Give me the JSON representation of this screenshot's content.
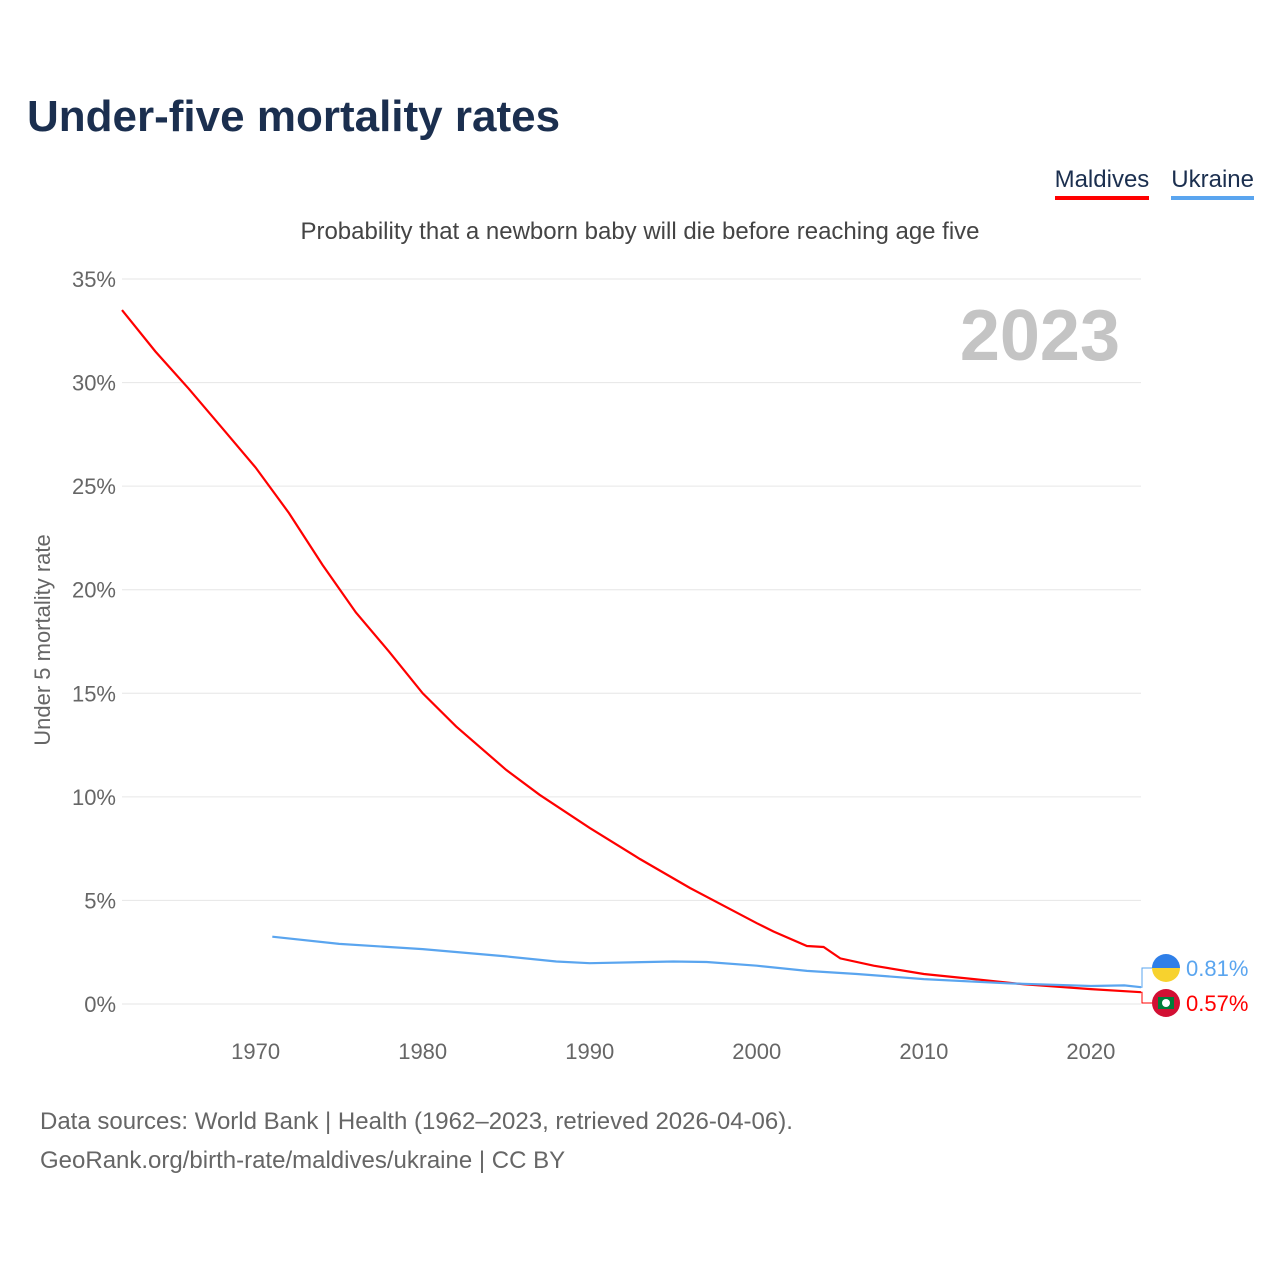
{
  "title": "Under-five mortality rates",
  "subtitle": "Probability that a newborn baby will die before reaching age five",
  "year_label": "2023",
  "source_line1": "Data sources: World Bank | Health (1962–2023, retrieved 2026-04-06).",
  "source_line2": "GeoRank.org/birth-rate/maldives/ukraine | CC BY",
  "chart_data": {
    "type": "line",
    "ylabel": "Under 5 mortality rate",
    "xlim": [
      1962,
      2023
    ],
    "ylim": [
      0,
      35
    ],
    "xticks": [
      1970,
      1980,
      1990,
      2000,
      2010,
      2020
    ],
    "yticks": [
      0,
      5,
      10,
      15,
      20,
      25,
      30,
      35
    ],
    "ytick_labels": [
      "0%",
      "5%",
      "10%",
      "15%",
      "20%",
      "25%",
      "30%",
      "35%"
    ],
    "grid": true,
    "legend": "top-right",
    "series": [
      {
        "name": "Maldives",
        "color": "#ff0000",
        "end_label": "0.57%",
        "x": [
          1962,
          1964,
          1966,
          1968,
          1970,
          1972,
          1974,
          1976,
          1978,
          1980,
          1982,
          1985,
          1987,
          1990,
          1993,
          1996,
          2000,
          2001,
          2003,
          2004,
          2005,
          2007,
          2010,
          2013,
          2016,
          2020,
          2023
        ],
        "y": [
          33.5,
          31.5,
          29.7,
          27.8,
          25.9,
          23.7,
          21.2,
          18.9,
          17.0,
          15.0,
          13.4,
          11.3,
          10.1,
          8.5,
          7.0,
          5.6,
          3.9,
          3.5,
          2.8,
          2.75,
          2.2,
          1.85,
          1.45,
          1.2,
          0.95,
          0.72,
          0.57
        ]
      },
      {
        "name": "Ukraine",
        "color": "#5aa5ef",
        "end_label": "0.81%",
        "x": [
          1971,
          1975,
          1980,
          1985,
          1988,
          1990,
          1995,
          1997,
          2000,
          2003,
          2006,
          2010,
          2015,
          2020,
          2022,
          2023
        ],
        "y": [
          3.25,
          2.9,
          2.65,
          2.3,
          2.05,
          1.97,
          2.05,
          2.03,
          1.85,
          1.6,
          1.45,
          1.2,
          1.0,
          0.87,
          0.9,
          0.81
        ]
      }
    ]
  }
}
